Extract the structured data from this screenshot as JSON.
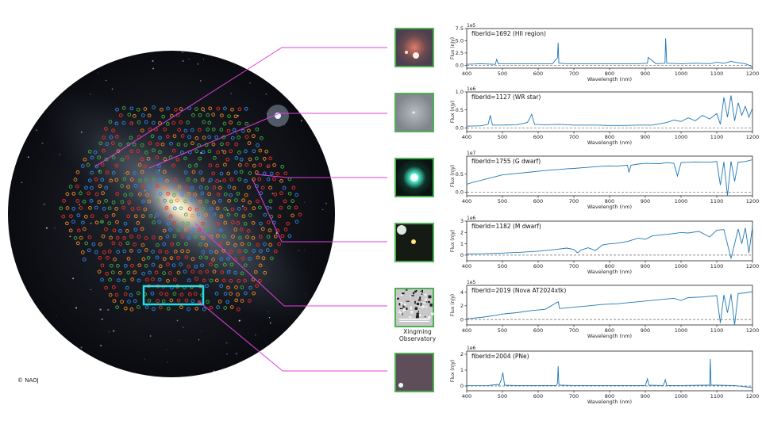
{
  "credit": "© NAOJ",
  "thumbnail_caption": "Xingming Observatory",
  "colors": {
    "connector": "#e040e0",
    "highlight_box": "#20e0e8",
    "thumb_border": "#4caf50",
    "spectrum": "#1f77b4",
    "fiber_colors": [
      "#e8302a",
      "#2a8ae8",
      "#3cb043",
      "#f08a24"
    ]
  },
  "chart_data": [
    {
      "type": "line",
      "annotation": "fiberId=1692 (HII region)",
      "xlabel": "Wavelength (nm)",
      "ylabel": "Flux (nJy)",
      "scale_label": "1e5",
      "xlim": [
        400,
        1200
      ],
      "ylim": [
        -0.6,
        7.5
      ],
      "yticks": [
        0.0,
        2.5,
        5.0,
        7.5
      ],
      "ytick_labels": [
        "0.0",
        "2.5",
        "5.0",
        "7.5"
      ],
      "xticks": [
        400,
        500,
        600,
        700,
        800,
        900,
        1000,
        1100,
        1200
      ],
      "zero_line": true,
      "x": [
        400,
        440,
        480,
        484,
        488,
        520,
        560,
        600,
        640,
        654,
        656,
        658,
        680,
        720,
        760,
        800,
        840,
        880,
        906,
        908,
        930,
        955,
        957,
        960,
        1000,
        1040,
        1080,
        1100,
        1120,
        1140,
        1160,
        1180,
        1200
      ],
      "y": [
        0.2,
        0.3,
        0.2,
        1.2,
        0.3,
        0.3,
        0.3,
        0.3,
        0.3,
        1.5,
        4.6,
        0.4,
        0.3,
        0.3,
        0.3,
        0.3,
        0.3,
        0.3,
        0.4,
        1.6,
        0.3,
        0.4,
        5.5,
        0.4,
        0.3,
        0.4,
        0.3,
        0.6,
        0.4,
        0.8,
        0.5,
        0.3,
        -0.3
      ]
    },
    {
      "type": "line",
      "annotation": "fiberId=1127 (WR star)",
      "xlabel": "Wavelength (nm)",
      "ylabel": "Flux (nJy)",
      "scale_label": "1e6",
      "xlim": [
        400,
        1200
      ],
      "ylim": [
        -0.1,
        1.0
      ],
      "yticks": [
        0.0,
        0.5,
        1.0
      ],
      "ytick_labels": [
        "0.0",
        "0.5",
        "1.0"
      ],
      "xticks": [
        400,
        500,
        600,
        700,
        800,
        900,
        1000,
        1100,
        1200
      ],
      "zero_line": true,
      "x": [
        400,
        440,
        460,
        466,
        472,
        500,
        540,
        570,
        582,
        590,
        620,
        660,
        700,
        760,
        800,
        840,
        880,
        920,
        960,
        980,
        1000,
        1020,
        1040,
        1060,
        1080,
        1100,
        1110,
        1120,
        1130,
        1140,
        1150,
        1160,
        1170,
        1180,
        1190,
        1200
      ],
      "y": [
        0.05,
        0.06,
        0.1,
        0.35,
        0.08,
        0.08,
        0.09,
        0.15,
        0.38,
        0.1,
        0.09,
        0.1,
        0.08,
        0.08,
        0.07,
        0.07,
        0.08,
        0.08,
        0.15,
        0.22,
        0.18,
        0.28,
        0.2,
        0.35,
        0.25,
        0.4,
        0.1,
        0.85,
        0.3,
        0.9,
        0.2,
        0.7,
        0.35,
        0.6,
        0.3,
        0.55
      ]
    },
    {
      "type": "line",
      "annotation": "fiberId=1755 (G dwarf)",
      "xlabel": "Wavelength (nm)",
      "ylabel": "Flux (nJy)",
      "scale_label": "1e7",
      "xlim": [
        400,
        1200
      ],
      "ylim": [
        -0.1,
        1.0
      ],
      "yticks": [
        0.0,
        0.5
      ],
      "ytick_labels": [
        "0.0",
        "0.5"
      ],
      "xticks": [
        400,
        500,
        600,
        700,
        800,
        900,
        1000,
        1100,
        1200
      ],
      "zero_line": true,
      "x": [
        400,
        420,
        440,
        460,
        480,
        500,
        540,
        580,
        600,
        640,
        660,
        680,
        700,
        740,
        780,
        800,
        820,
        850,
        854,
        860,
        880,
        900,
        940,
        960,
        980,
        990,
        1000,
        1040,
        1080,
        1100,
        1110,
        1120,
        1130,
        1140,
        1150,
        1160,
        1180,
        1200
      ],
      "y": [
        0.22,
        0.28,
        0.33,
        0.38,
        0.43,
        0.48,
        0.52,
        0.56,
        0.58,
        0.62,
        0.63,
        0.65,
        0.66,
        0.69,
        0.72,
        0.73,
        0.72,
        0.75,
        0.55,
        0.75,
        0.78,
        0.8,
        0.79,
        0.82,
        0.8,
        0.45,
        0.82,
        0.84,
        0.83,
        0.85,
        0.2,
        0.84,
        -0.1,
        0.86,
        0.3,
        0.83,
        0.85,
        0.9
      ]
    },
    {
      "type": "line",
      "annotation": "fiberId=1182 (M dwarf)",
      "xlabel": "Wavelength (nm)",
      "ylabel": "Flux (nJy)",
      "scale_label": "1e6",
      "xlim": [
        400,
        1200
      ],
      "ylim": [
        -0.5,
        3.0
      ],
      "yticks": [
        0,
        1,
        2,
        3
      ],
      "ytick_labels": [
        "0",
        "1",
        "2",
        "3"
      ],
      "xticks": [
        400,
        500,
        600,
        700,
        800,
        900,
        1000,
        1100,
        1200
      ],
      "zero_line": true,
      "x": [
        400,
        450,
        500,
        550,
        600,
        650,
        680,
        700,
        710,
        720,
        740,
        760,
        780,
        800,
        820,
        850,
        880,
        900,
        920,
        950,
        980,
        1000,
        1020,
        1050,
        1080,
        1100,
        1120,
        1140,
        1160,
        1170,
        1180,
        1190,
        1200
      ],
      "y": [
        0.1,
        0.12,
        0.18,
        0.25,
        0.35,
        0.5,
        0.62,
        0.5,
        0.2,
        0.45,
        0.65,
        0.4,
        0.9,
        1.0,
        1.05,
        1.2,
        1.5,
        1.4,
        1.7,
        1.8,
        1.9,
        2.0,
        1.95,
        2.1,
        1.6,
        2.2,
        2.25,
        -0.3,
        2.3,
        1.0,
        2.4,
        0.2,
        2.5
      ]
    },
    {
      "type": "line",
      "annotation": "fiberId=2019 (Nova AT2024xtk)",
      "xlabel": "Wavelength (nm)",
      "ylabel": "Flux (nJy)",
      "scale_label": "1e5",
      "xlim": [
        400,
        1200
      ],
      "ylim": [
        -0.8,
        5.0
      ],
      "yticks": [
        0,
        2,
        4
      ],
      "ytick_labels": [
        "0",
        "2",
        "4"
      ],
      "xticks": [
        400,
        500,
        600,
        700,
        800,
        900,
        1000,
        1100,
        1200
      ],
      "zero_line": true,
      "x": [
        400,
        440,
        480,
        500,
        540,
        580,
        620,
        656,
        660,
        700,
        740,
        780,
        820,
        860,
        880,
        900,
        940,
        960,
        980,
        1000,
        1020,
        1060,
        1080,
        1100,
        1110,
        1120,
        1130,
        1140,
        1150,
        1160,
        1180,
        1200
      ],
      "y": [
        0.1,
        0.3,
        0.6,
        0.8,
        1.0,
        1.3,
        1.5,
        2.6,
        1.6,
        1.8,
        2.0,
        2.2,
        2.3,
        2.5,
        2.6,
        2.7,
        2.9,
        3.0,
        3.1,
        2.8,
        3.2,
        3.3,
        3.4,
        3.5,
        -0.5,
        3.6,
        1.0,
        3.7,
        -0.8,
        3.8,
        3.9,
        4.1
      ]
    },
    {
      "type": "line",
      "annotation": "fiberId=2004 (PNe)",
      "xlabel": "Wavelength (nm)",
      "ylabel": "Flux (nJy)",
      "scale_label": "1e6",
      "xlim": [
        400,
        1200
      ],
      "ylim": [
        -0.3,
        2.2
      ],
      "yticks": [
        0,
        1,
        2
      ],
      "ytick_labels": [
        "0",
        "1",
        "2"
      ],
      "xticks": [
        400,
        500,
        600,
        700,
        800,
        900,
        1000,
        1100,
        1200
      ],
      "zero_line": true,
      "x": [
        400,
        460,
        486,
        490,
        496,
        501,
        506,
        540,
        600,
        650,
        654,
        656,
        658,
        662,
        700,
        800,
        900,
        906,
        910,
        950,
        954,
        956,
        960,
        1000,
        1060,
        1080,
        1082,
        1084,
        1100,
        1150,
        1200
      ],
      "y": [
        0.02,
        0.03,
        0.1,
        0.03,
        0.35,
        0.85,
        0.05,
        0.03,
        0.03,
        0.03,
        0.15,
        1.25,
        0.1,
        0.05,
        0.03,
        0.03,
        0.03,
        0.45,
        0.05,
        0.03,
        0.25,
        0.4,
        0.03,
        0.03,
        0.05,
        0.05,
        1.7,
        0.05,
        0.05,
        0.03,
        -0.1
      ]
    }
  ]
}
